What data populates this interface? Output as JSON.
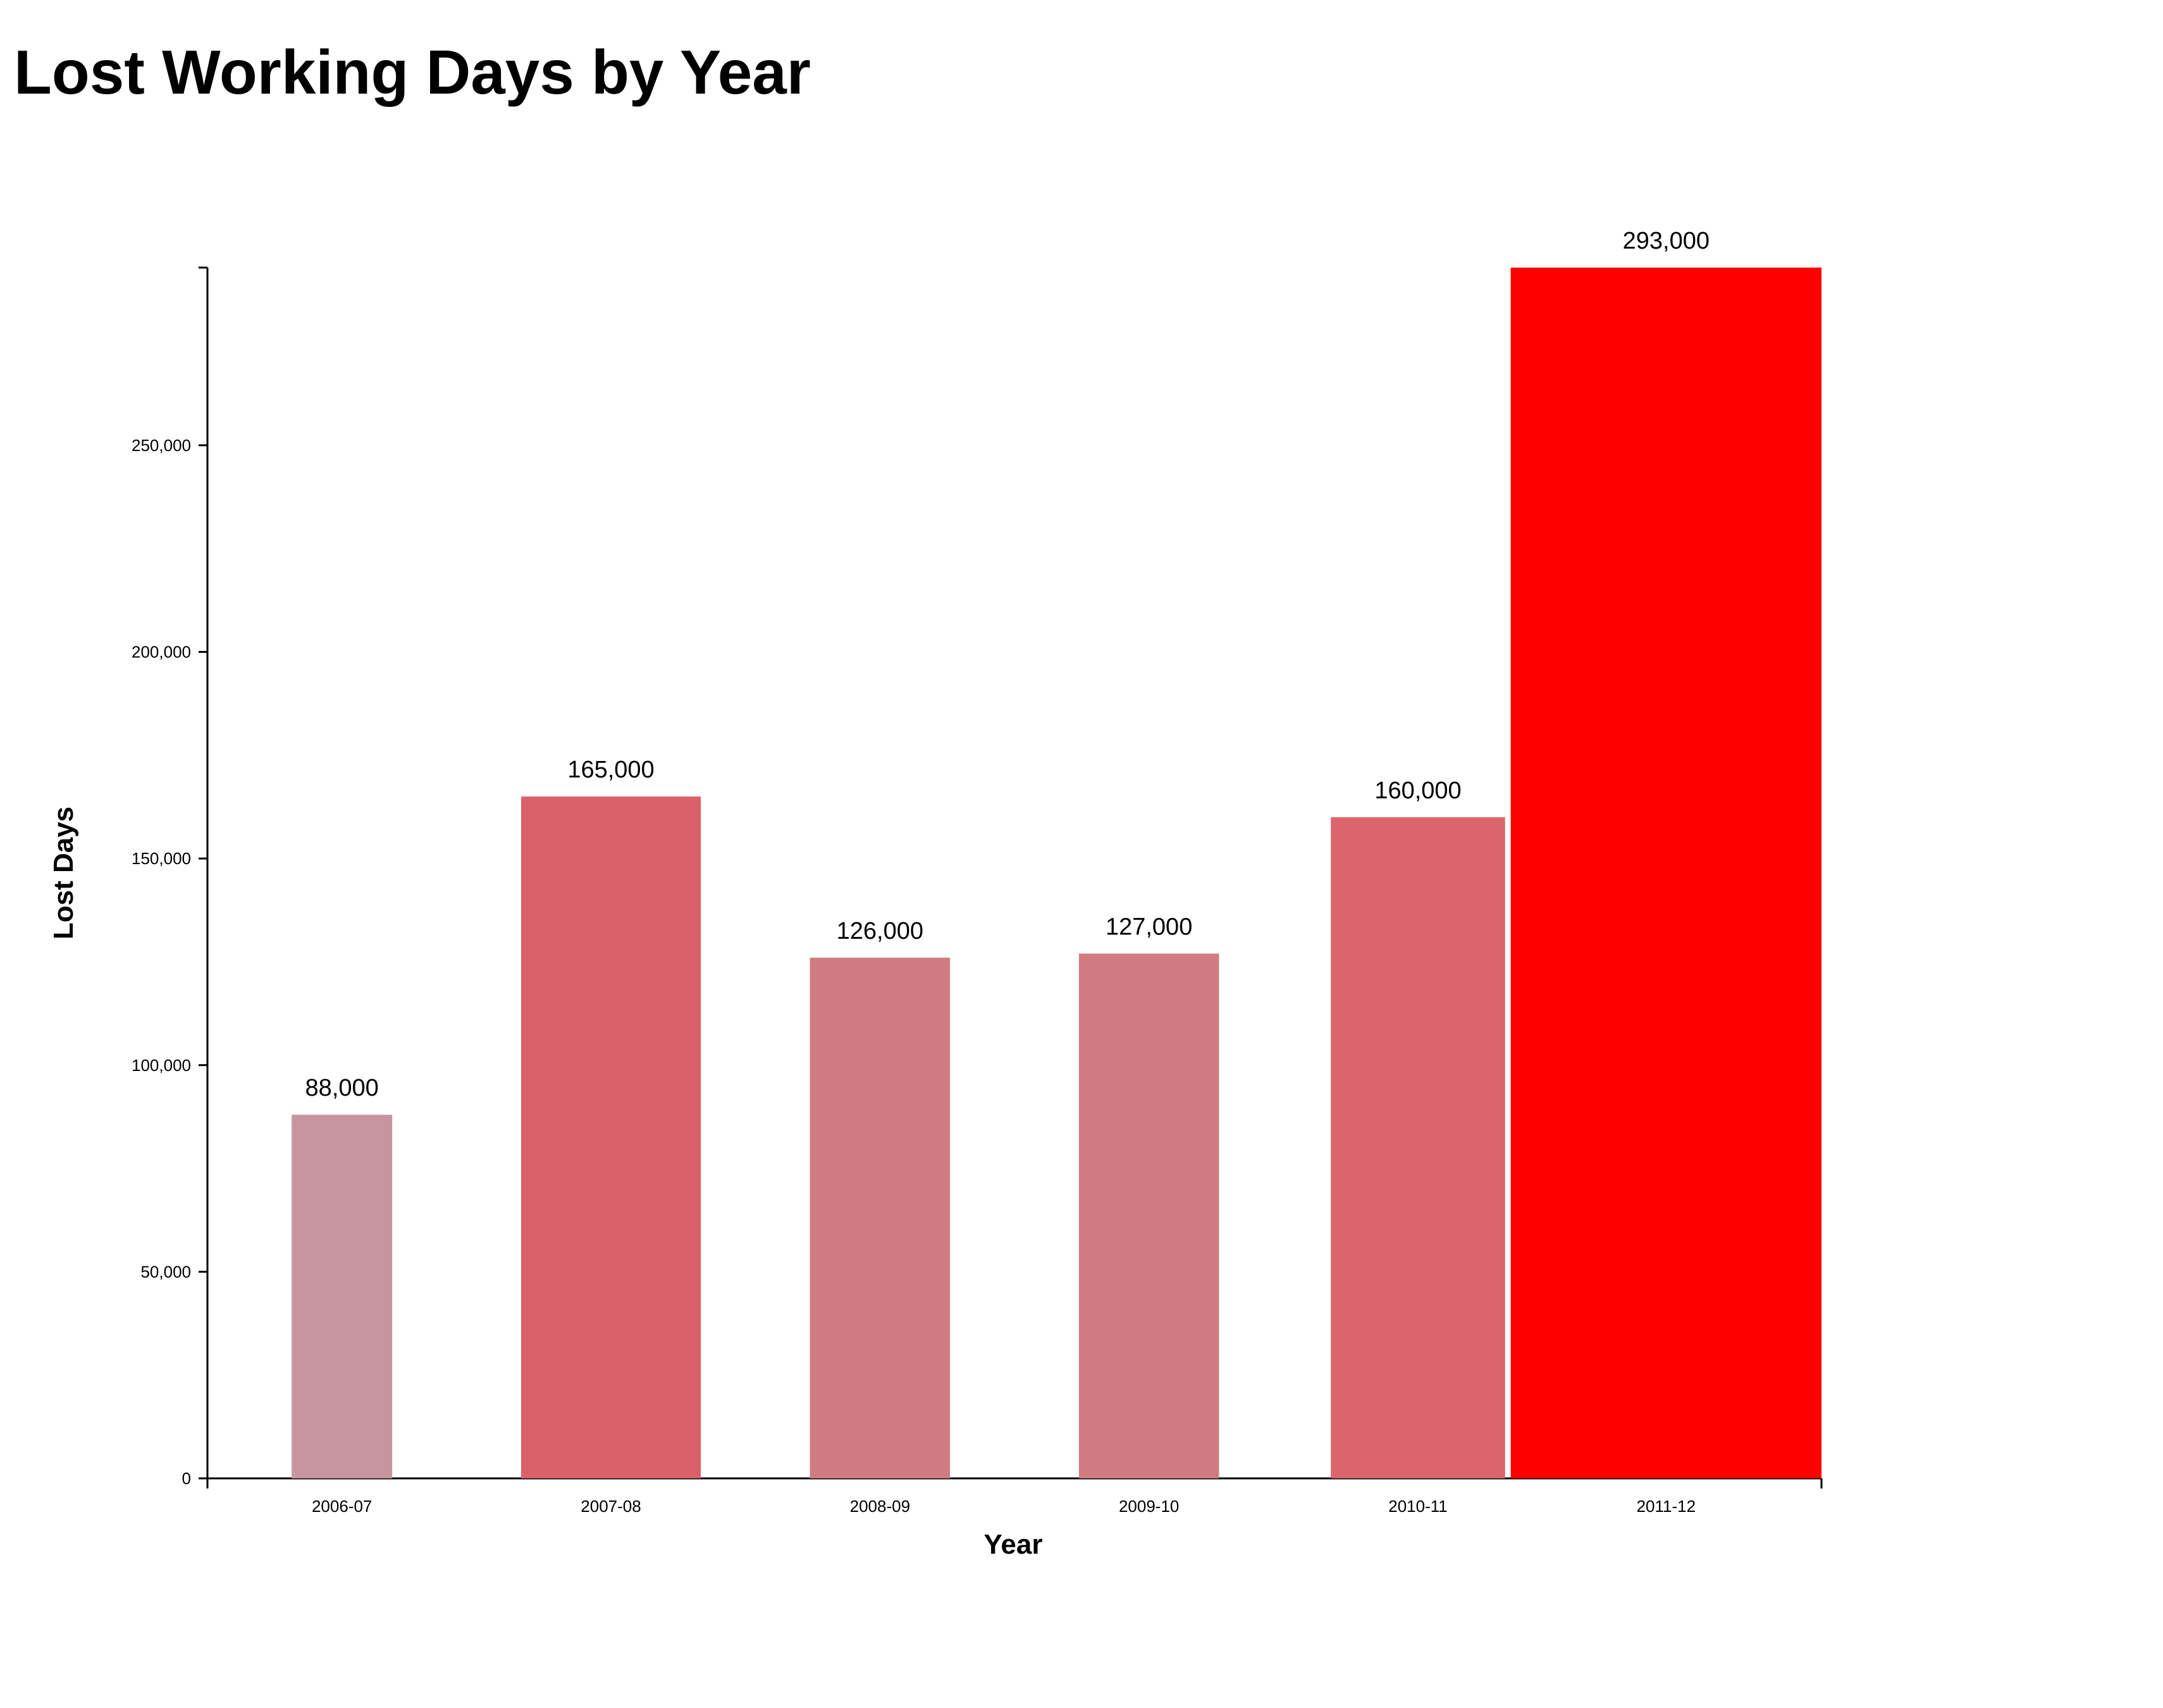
{
  "chart_data": {
    "type": "bar",
    "title": "Lost Working Days by Year",
    "xlabel": "Year",
    "ylabel": "Lost Days",
    "categories": [
      "2006-07",
      "2007-08",
      "2008-09",
      "2009-10",
      "2010-11",
      "2011-12"
    ],
    "values": [
      88000,
      165000,
      126000,
      127000,
      160000,
      293000
    ],
    "value_labels": [
      "88,000",
      "165,000",
      "126,000",
      "127,000",
      "160,000",
      "293,000"
    ],
    "ylim": [
      0,
      293000
    ],
    "yticks": [
      0,
      50000,
      100000,
      150000,
      200000,
      250000
    ],
    "ytick_labels": [
      "0",
      "50,000",
      "100,000",
      "150,000",
      "200,000",
      "250,000"
    ],
    "bar_colors": [
      "#c6959f",
      "#db6168",
      "#d07b82",
      "#d07b82",
      "#db656b",
      "#ff0000"
    ],
    "bar_relative_widths": [
      0.56,
      1.0,
      0.78,
      0.78,
      0.97,
      1.73
    ],
    "grid": false,
    "legend": "none"
  }
}
